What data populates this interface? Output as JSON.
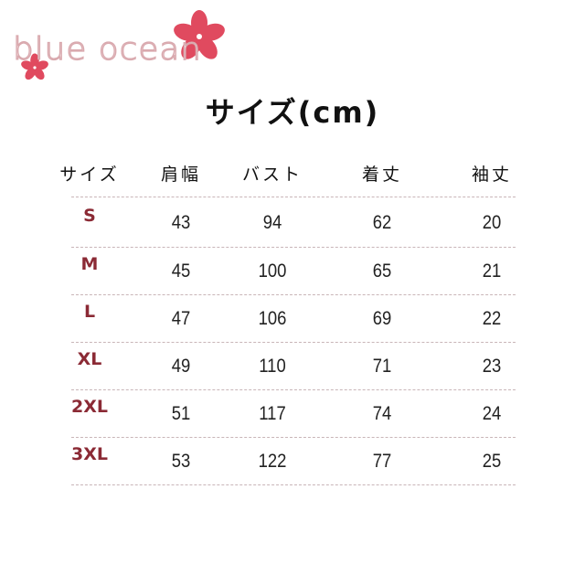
{
  "logo": {
    "text": "blue ocean"
  },
  "title": "サイズ(cm)",
  "table": {
    "headers": [
      "サイズ",
      "肩幅",
      "バスト",
      "着丈",
      "袖丈"
    ],
    "rows": [
      {
        "size": "S",
        "shoulder": "43",
        "bust": "94",
        "length": "62",
        "sleeve": "20"
      },
      {
        "size": "M",
        "shoulder": "45",
        "bust": "100",
        "length": "65",
        "sleeve": "21"
      },
      {
        "size": "L",
        "shoulder": "47",
        "bust": "106",
        "length": "69",
        "sleeve": "22"
      },
      {
        "size": "XL",
        "shoulder": "49",
        "bust": "110",
        "length": "71",
        "sleeve": "23"
      },
      {
        "size": "2XL",
        "shoulder": "51",
        "bust": "117",
        "length": "74",
        "sleeve": "24"
      },
      {
        "size": "3XL",
        "shoulder": "53",
        "bust": "122",
        "length": "77",
        "sleeve": "25"
      }
    ]
  },
  "colors": {
    "size_label": "#8b2a35",
    "flower": "#e04a5f"
  }
}
